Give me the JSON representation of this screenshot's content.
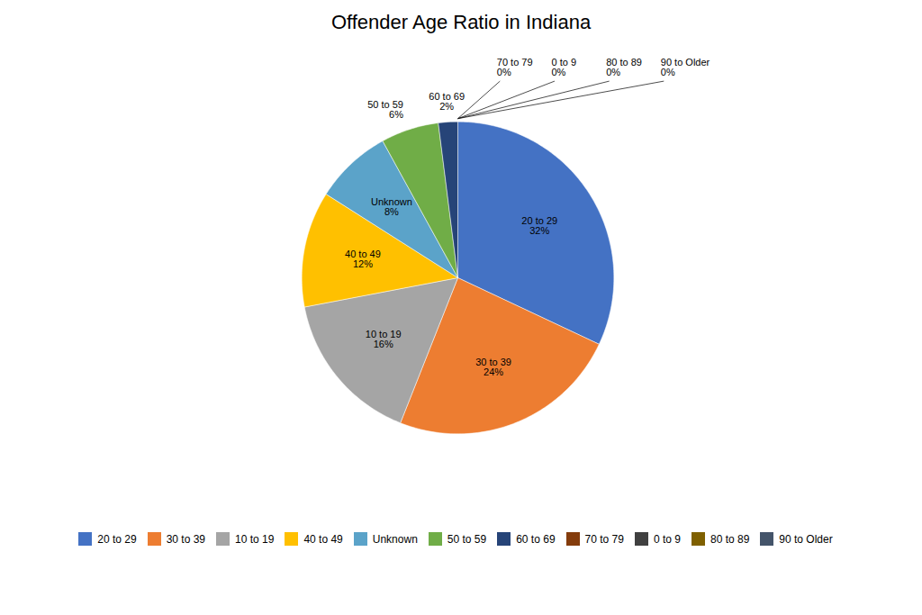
{
  "chart_data": {
    "type": "pie",
    "title": "Offender Age Ratio in Indiana",
    "categories": [
      "20 to 29",
      "30 to 39",
      "10 to 19",
      "40 to 49",
      "Unknown",
      "50 to 59",
      "60 to 69",
      "70 to 79",
      "0 to 9",
      "80 to 89",
      "90 to Older"
    ],
    "values": [
      32,
      24,
      16,
      12,
      8,
      6,
      2,
      0,
      0,
      0,
      0
    ],
    "value_labels": [
      "32%",
      "24%",
      "16%",
      "12%",
      "8%",
      "6%",
      "2%",
      "0%",
      "0%",
      "0%",
      "0%"
    ],
    "colors": [
      "#4472C4",
      "#ED7D31",
      "#A5A5A5",
      "#FFC000",
      "#5BA3C9",
      "#70AD47",
      "#264478",
      "#843C0C",
      "#404040",
      "#7F6000",
      "#44546A"
    ],
    "data_labels": true,
    "legend": "bottom"
  }
}
